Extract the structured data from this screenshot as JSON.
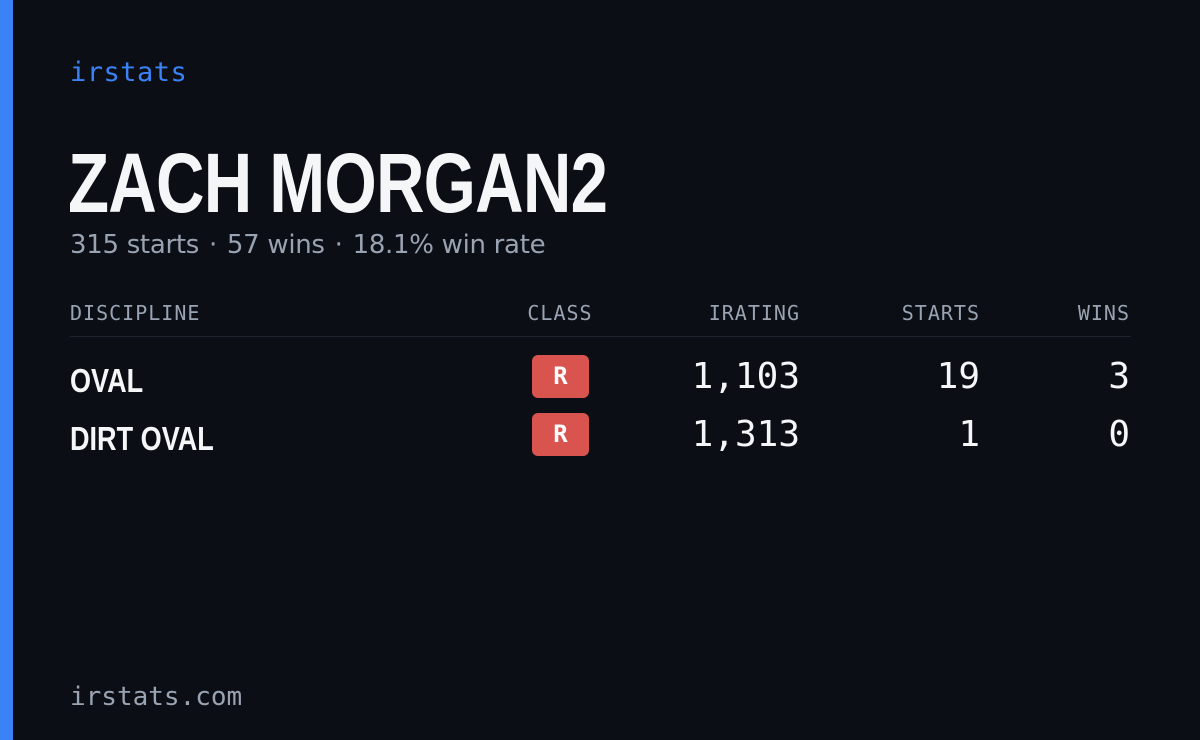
{
  "brand": "irstats",
  "driver": {
    "name": "ZACH MORGAN2",
    "starts": "315 starts",
    "wins": "57 wins",
    "win_rate": "18.1% win rate",
    "separator": "·"
  },
  "table": {
    "headers": {
      "discipline": "DISCIPLINE",
      "class": "CLASS",
      "irating": "IRATING",
      "starts": "STARTS",
      "wins": "WINS"
    },
    "rows": [
      {
        "discipline": "OVAL",
        "class": "R",
        "irating": "1,103",
        "starts": "19",
        "wins": "3"
      },
      {
        "discipline": "DIRT OVAL",
        "class": "R",
        "irating": "1,313",
        "starts": "1",
        "wins": "0"
      }
    ]
  },
  "footer": "irstats.com",
  "colors": {
    "background": "#0b0e15",
    "accent": "#3b82f6",
    "class_r_badge": "#d9534f",
    "muted_text": "#9aa3b2",
    "primary_text": "#f5f6f8"
  }
}
